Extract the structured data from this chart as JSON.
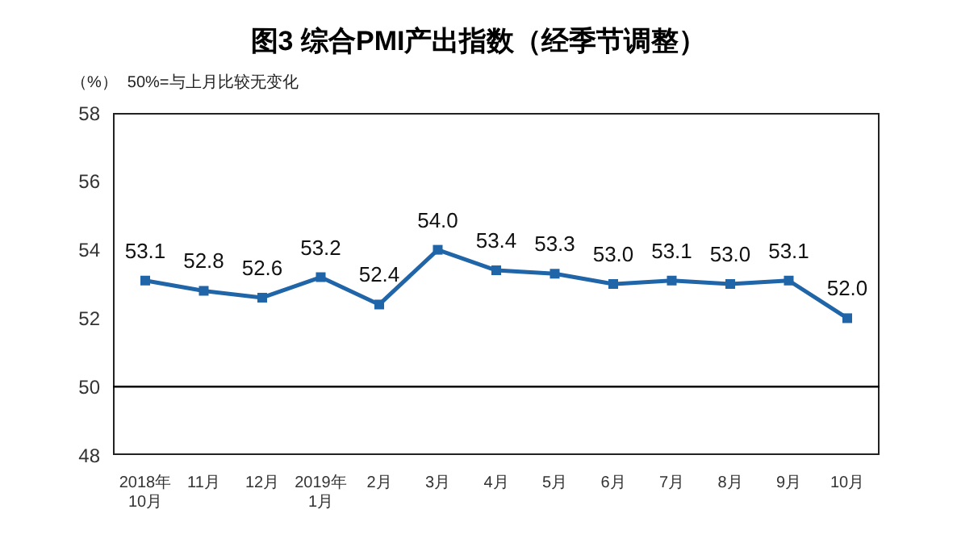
{
  "chart_data": {
    "type": "line",
    "title": "图3 综合PMI产出指数（经季节调整）",
    "ylabel": "（%）",
    "annotations": [
      "50%=与上月比较无变化"
    ],
    "categories": [
      "2018年\n10月",
      "11月",
      "12月",
      "2019年\n1月",
      "2月",
      "3月",
      "4月",
      "5月",
      "6月",
      "7月",
      "8月",
      "9月",
      "10月"
    ],
    "series": [
      {
        "color": "#1f65a8",
        "values": [
          53.1,
          52.8,
          52.6,
          53.2,
          52.4,
          54.0,
          53.4,
          53.3,
          53.0,
          53.1,
          53.0,
          53.1,
          52.0
        ],
        "value_labels": [
          "53.1",
          "52.8",
          "52.6",
          "53.2",
          "52.4",
          "54.0",
          "53.4",
          "53.3",
          "53.0",
          "53.1",
          "53.0",
          "53.1",
          "52.0"
        ]
      }
    ],
    "ylim": [
      48,
      58
    ],
    "yticks": [
      48,
      50,
      52,
      54,
      56,
      58
    ],
    "ref_lines": [
      {
        "axis": "y",
        "value": 50,
        "color": "#000000"
      }
    ],
    "marker": "square",
    "line_style": "solid",
    "grid": false
  }
}
